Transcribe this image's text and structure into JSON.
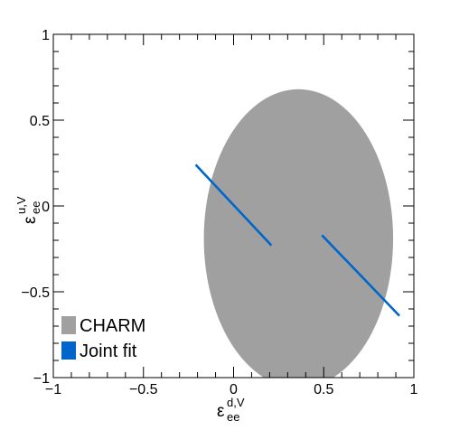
{
  "chart_data": {
    "type": "scatter",
    "xlabel": {
      "main": "ε",
      "sup": "d,V",
      "sub": "ee"
    },
    "ylabel": {
      "main": "ε",
      "sup": "u,V",
      "sub": "ee"
    },
    "xlim": [
      -1,
      1
    ],
    "ylim": [
      -1,
      1
    ],
    "x_ticks": [
      -1,
      -0.5,
      0,
      0.5,
      1
    ],
    "x_tick_labels": [
      "−1",
      "−0.5",
      "0",
      "0.5",
      "1"
    ],
    "y_ticks": [
      -1,
      -0.5,
      0,
      0.5,
      1
    ],
    "y_tick_labels": [
      "−1",
      "−0.5",
      "0",
      "0.5",
      "1"
    ],
    "grid": false,
    "legend_position": "bottom-left",
    "series": [
      {
        "name": "CHARM",
        "color": "#a0a0a0",
        "shape": "ellipse",
        "center": [
          0.36,
          -0.19
        ],
        "radius_x": 0.525,
        "radius_y": 0.87
      },
      {
        "name": "Joint fit",
        "color": "#0066cc",
        "shape": "bands",
        "segments": [
          {
            "from": [
              -0.21,
              0.24
            ],
            "to": [
              0.21,
              -0.23
            ]
          },
          {
            "from": [
              0.49,
              -0.17
            ],
            "to": [
              0.92,
              -0.64
            ]
          }
        ]
      }
    ]
  }
}
